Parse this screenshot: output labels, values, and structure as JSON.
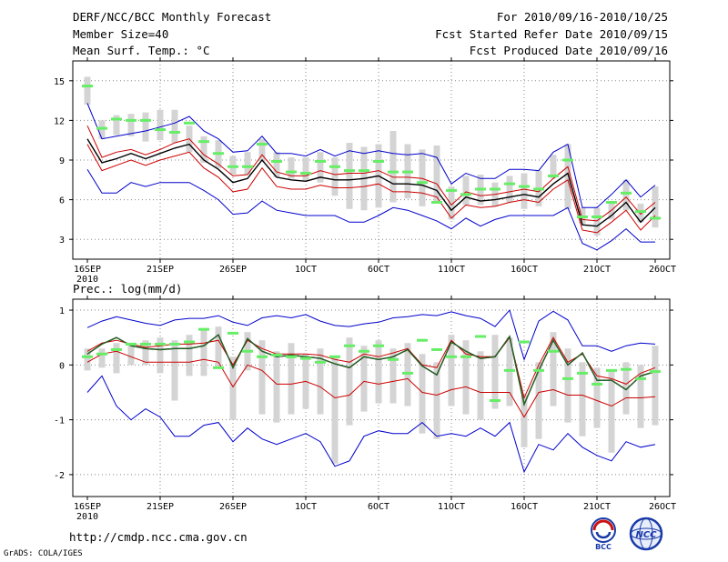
{
  "header": {
    "title": "DERF/NCC/BCC Monthly Forecast",
    "member_size": "Member Size=40",
    "variable": "Mean Surf. Temp.: °C",
    "period": "For 2010/09/16-2010/10/25",
    "started": "Fcst Started Refer Date 2010/09/15",
    "produced": "Fcst Produced Date 2010/09/16"
  },
  "footer": {
    "url": "http://cmdp.ncc.cma.gov.cn",
    "grads": "GrADS: COLA/IGES",
    "logo_bcc": "BCC",
    "logo_ncc": "NCC"
  },
  "colors": {
    "ensemble_range": "#0000cc",
    "spread": "#cc0000",
    "mean": "#000000",
    "member_bar": "#d4d4d4",
    "median_mark": "#66ee66",
    "grid": "#888888"
  },
  "chart_data": [
    {
      "type": "line",
      "title": "",
      "ylabel": "Mean Surf. Temp.: °C",
      "xlabel": "",
      "ylim": [
        1.5,
        16.5
      ],
      "yticks": [
        3,
        6,
        9,
        12,
        15
      ],
      "x_days": 40,
      "xticks": [
        {
          "day": 1,
          "label": "16SEP",
          "sublabel": "2010"
        },
        {
          "day": 6,
          "label": "21SEP"
        },
        {
          "day": 11,
          "label": "26SEP"
        },
        {
          "day": 16,
          "label": "1OCT"
        },
        {
          "day": 21,
          "label": "6OCT"
        },
        {
          "day": 26,
          "label": "11OCT"
        },
        {
          "day": 31,
          "label": "16OCT"
        },
        {
          "day": 36,
          "label": "21OCT"
        },
        {
          "day": 40,
          "label": "26OCT"
        }
      ],
      "series": [
        {
          "name": "max",
          "color": "#0000cc",
          "values": [
            13.3,
            10.6,
            10.8,
            11.0,
            11.2,
            11.5,
            11.8,
            12.3,
            11.2,
            10.6,
            9.6,
            9.7,
            10.8,
            9.5,
            9.5,
            9.3,
            9.8,
            9.3,
            9.7,
            9.5,
            9.7,
            9.5,
            9.4,
            9.5,
            9.2,
            7.2,
            8.0,
            7.6,
            7.6,
            8.3,
            8.3,
            8.2,
            9.6,
            10.2,
            5.4,
            5.4,
            6.4,
            7.5,
            6.2,
            7.1
          ]
        },
        {
          "name": "upper",
          "color": "#cc0000",
          "values": [
            11.6,
            9.2,
            9.6,
            9.8,
            9.4,
            9.8,
            10.3,
            10.6,
            9.4,
            8.7,
            7.8,
            7.9,
            9.4,
            8.1,
            7.8,
            7.8,
            8.2,
            7.9,
            8.0,
            8.0,
            8.2,
            7.7,
            7.7,
            7.6,
            7.2,
            5.6,
            6.6,
            6.3,
            6.4,
            6.6,
            6.8,
            6.6,
            7.6,
            8.5,
            4.5,
            4.4,
            5.2,
            6.2,
            4.9,
            5.8
          ]
        },
        {
          "name": "mean",
          "color": "#000000",
          "values": [
            10.6,
            8.8,
            9.1,
            9.5,
            9.1,
            9.5,
            9.9,
            10.2,
            9.0,
            8.3,
            7.3,
            7.6,
            9.0,
            7.7,
            7.5,
            7.4,
            7.7,
            7.5,
            7.5,
            7.6,
            7.8,
            7.2,
            7.2,
            7.1,
            6.7,
            5.2,
            6.2,
            5.9,
            6.0,
            6.2,
            6.4,
            6.2,
            7.2,
            8.0,
            4.1,
            4.0,
            4.8,
            5.8,
            4.3,
            5.4
          ]
        },
        {
          "name": "lower",
          "color": "#cc0000",
          "values": [
            10.2,
            8.2,
            8.6,
            9.0,
            8.6,
            9.0,
            9.3,
            9.6,
            8.4,
            7.7,
            6.6,
            6.8,
            8.4,
            7.0,
            6.8,
            6.8,
            7.1,
            6.9,
            6.9,
            7.0,
            7.2,
            6.6,
            6.6,
            6.5,
            6.2,
            4.6,
            5.6,
            5.4,
            5.5,
            5.8,
            6.0,
            5.8,
            6.8,
            7.5,
            3.7,
            3.5,
            4.3,
            5.2,
            3.7,
            4.8
          ]
        },
        {
          "name": "min",
          "color": "#0000cc",
          "values": [
            8.3,
            6.5,
            6.5,
            7.3,
            7.0,
            7.3,
            7.3,
            7.3,
            6.7,
            6.0,
            4.9,
            5.0,
            5.9,
            5.2,
            5.0,
            4.8,
            4.8,
            4.8,
            4.3,
            4.3,
            4.8,
            5.4,
            5.2,
            4.8,
            4.4,
            3.8,
            4.6,
            4.0,
            4.5,
            4.8,
            4.8,
            4.8,
            4.8,
            5.4,
            2.7,
            2.2,
            2.9,
            3.8,
            2.8,
            2.8
          ]
        }
      ],
      "member_bars": [
        [
          13.2,
          15.3
        ],
        [
          10.6,
          12.0
        ],
        [
          10.9,
          12.4
        ],
        [
          10.8,
          12.5
        ],
        [
          10.4,
          12.6
        ],
        [
          10.5,
          12.8
        ],
        [
          10.3,
          12.8
        ],
        [
          9.6,
          11.6
        ],
        [
          8.8,
          10.8
        ],
        [
          8.4,
          10.5
        ],
        [
          7.9,
          9.3
        ],
        [
          7.9,
          9.6
        ],
        [
          8.9,
          10.6
        ],
        [
          7.7,
          9.6
        ],
        [
          7.6,
          9.2
        ],
        [
          7.4,
          9.2
        ],
        [
          7.3,
          9.6
        ],
        [
          6.3,
          9.2
        ],
        [
          5.3,
          10.3
        ],
        [
          5.2,
          10.0
        ],
        [
          5.4,
          10.2
        ],
        [
          5.8,
          11.2
        ],
        [
          6.1,
          10.2
        ],
        [
          5.5,
          9.8
        ],
        [
          5.9,
          10.1
        ],
        [
          4.5,
          7.0
        ],
        [
          5.6,
          7.8
        ],
        [
          5.6,
          7.9
        ],
        [
          5.5,
          7.3
        ],
        [
          5.8,
          7.8
        ],
        [
          5.3,
          8.0
        ],
        [
          5.5,
          8.2
        ],
        [
          7.6,
          9.4
        ],
        [
          5.3,
          10.2
        ],
        [
          4.2,
          5.4
        ],
        [
          3.3,
          5.4
        ],
        [
          4.5,
          5.9
        ],
        [
          5.2,
          7.5
        ],
        [
          4.3,
          5.7
        ],
        [
          3.9,
          7.0
        ]
      ],
      "median_marks": [
        14.6,
        11.4,
        12.1,
        12.0,
        12.0,
        11.3,
        11.1,
        11.8,
        10.4,
        9.5,
        8.5,
        8.5,
        10.2,
        8.9,
        8.1,
        8.0,
        8.9,
        8.5,
        8.2,
        8.2,
        8.9,
        8.1,
        8.1,
        7.3,
        5.8,
        6.7,
        6.4,
        6.8,
        6.8,
        7.2,
        7.0,
        6.8,
        7.8,
        9.0,
        4.7,
        4.7,
        5.8,
        6.5,
        5.1,
        4.6
      ]
    },
    {
      "type": "line",
      "title": "Prec.: log(mm/d)",
      "ylabel": "Prec.: log(mm/d)",
      "xlabel": "",
      "ylim": [
        -2.4,
        1.2
      ],
      "yticks": [
        -2,
        -1,
        0,
        1
      ],
      "x_days": 40,
      "xticks": [
        {
          "day": 1,
          "label": "16SEP",
          "sublabel": "2010"
        },
        {
          "day": 6,
          "label": "21SEP"
        },
        {
          "day": 11,
          "label": "26SEP"
        },
        {
          "day": 16,
          "label": "1OCT"
        },
        {
          "day": 21,
          "label": "6OCT"
        },
        {
          "day": 26,
          "label": "11OCT"
        },
        {
          "day": 31,
          "label": "16OCT"
        },
        {
          "day": 36,
          "label": "21OCT"
        },
        {
          "day": 40,
          "label": "26OCT"
        }
      ],
      "series": [
        {
          "name": "max",
          "color": "#0000cc",
          "values": [
            0.68,
            0.8,
            0.88,
            0.82,
            0.76,
            0.72,
            0.82,
            0.85,
            0.85,
            0.9,
            0.78,
            0.72,
            0.86,
            0.9,
            0.86,
            0.92,
            0.8,
            0.72,
            0.7,
            0.75,
            0.78,
            0.86,
            0.88,
            0.92,
            0.9,
            0.97,
            0.9,
            0.85,
            0.7,
            1.0,
            0.1,
            0.8,
            0.98,
            0.82,
            0.35,
            0.35,
            0.25,
            0.35,
            0.4,
            0.38
          ]
        },
        {
          "name": "upper",
          "color": "#cc0000",
          "values": [
            0.25,
            0.4,
            0.45,
            0.38,
            0.32,
            0.35,
            0.38,
            0.38,
            0.4,
            0.45,
            0.0,
            0.45,
            0.3,
            0.2,
            0.2,
            0.2,
            0.18,
            0.1,
            0.05,
            0.2,
            0.15,
            0.22,
            0.3,
            0.0,
            -0.05,
            0.45,
            0.2,
            0.15,
            0.15,
            0.5,
            -0.6,
            0.0,
            0.5,
            0.05,
            0.2,
            -0.2,
            -0.25,
            -0.35,
            -0.15,
            -0.05
          ]
        },
        {
          "name": "mean",
          "color": "#000000",
          "values": [
            0.2,
            0.38,
            0.5,
            0.35,
            0.3,
            0.28,
            0.3,
            0.3,
            0.35,
            0.55,
            -0.05,
            0.48,
            0.25,
            0.15,
            0.18,
            0.15,
            0.12,
            0.02,
            -0.05,
            0.15,
            0.1,
            0.15,
            0.28,
            -0.02,
            -0.18,
            0.42,
            0.25,
            0.12,
            0.15,
            0.52,
            -0.72,
            -0.1,
            0.45,
            0.0,
            0.22,
            -0.28,
            -0.28,
            -0.45,
            -0.2,
            -0.12
          ]
        },
        {
          "name": "lower",
          "color": "#cc0000",
          "values": [
            0.05,
            0.2,
            0.25,
            0.15,
            0.05,
            0.05,
            0.05,
            0.05,
            0.1,
            0.05,
            -0.4,
            0.0,
            -0.1,
            -0.35,
            -0.35,
            -0.3,
            -0.4,
            -0.6,
            -0.55,
            -0.3,
            -0.35,
            -0.3,
            -0.25,
            -0.5,
            -0.55,
            -0.45,
            -0.4,
            -0.5,
            -0.5,
            -0.5,
            -0.95,
            -0.5,
            -0.45,
            -0.55,
            -0.55,
            -0.65,
            -0.75,
            -0.6,
            -0.6,
            -0.58
          ]
        },
        {
          "name": "min",
          "color": "#0000cc",
          "values": [
            -0.5,
            -0.2,
            -0.75,
            -1.0,
            -0.8,
            -0.95,
            -1.3,
            -1.3,
            -1.1,
            -1.05,
            -1.4,
            -1.15,
            -1.35,
            -1.45,
            -1.35,
            -1.25,
            -1.4,
            -1.85,
            -1.75,
            -1.3,
            -1.2,
            -1.25,
            -1.25,
            -1.05,
            -1.3,
            -1.25,
            -1.3,
            -1.15,
            -1.3,
            -1.05,
            -1.95,
            -1.45,
            -1.55,
            -1.25,
            -1.5,
            -1.65,
            -1.75,
            -1.4,
            -1.5,
            -1.45
          ]
        },
        {
          "name": "mean-green",
          "color": "#227722",
          "values": [
            0.2,
            0.38,
            0.5,
            0.35,
            0.3,
            0.28,
            0.3,
            0.3,
            0.35,
            0.55,
            -0.05,
            0.48,
            0.25,
            0.15,
            0.18,
            0.15,
            0.12,
            0.02,
            -0.05,
            0.15,
            0.1,
            0.15,
            0.28,
            -0.02,
            -0.18,
            0.42,
            0.25,
            0.12,
            0.15,
            0.52,
            -0.72,
            -0.1,
            0.45,
            0.0,
            0.22,
            -0.28,
            -0.28,
            -0.45,
            -0.2,
            -0.12
          ]
        }
      ],
      "member_bars": [
        [
          -0.1,
          0.3
        ],
        [
          -0.05,
          0.3
        ],
        [
          -0.15,
          0.4
        ],
        [
          0.0,
          0.4
        ],
        [
          0.0,
          0.45
        ],
        [
          -0.15,
          0.5
        ],
        [
          -0.65,
          0.45
        ],
        [
          -0.2,
          0.55
        ],
        [
          -0.2,
          0.65
        ],
        [
          -0.05,
          0.7
        ],
        [
          -1.0,
          0.15
        ],
        [
          -0.1,
          0.6
        ],
        [
          -0.9,
          0.45
        ],
        [
          -1.05,
          0.25
        ],
        [
          -0.9,
          0.4
        ],
        [
          -0.8,
          0.2
        ],
        [
          -0.9,
          0.3
        ],
        [
          -1.8,
          0.15
        ],
        [
          -1.1,
          0.5
        ],
        [
          -0.85,
          0.35
        ],
        [
          -0.7,
          0.45
        ],
        [
          -0.7,
          0.3
        ],
        [
          -0.75,
          0.4
        ],
        [
          -1.25,
          0.2
        ],
        [
          -1.35,
          0.05
        ],
        [
          -0.75,
          0.55
        ],
        [
          -0.9,
          0.45
        ],
        [
          -1.0,
          0.25
        ],
        [
          -0.8,
          0.55
        ],
        [
          -0.75,
          0.5
        ],
        [
          -1.5,
          -0.55
        ],
        [
          -1.35,
          0.05
        ],
        [
          -0.75,
          0.6
        ],
        [
          -1.05,
          0.3
        ],
        [
          -1.3,
          0.05
        ],
        [
          -1.15,
          -0.05
        ],
        [
          -1.6,
          -0.1
        ],
        [
          -0.9,
          0.05
        ],
        [
          -1.15,
          0.0
        ],
        [
          -1.1,
          0.35
        ]
      ],
      "median_marks": [
        0.15,
        0.2,
        0.28,
        0.38,
        0.38,
        0.38,
        0.38,
        0.42,
        0.65,
        -0.05,
        0.58,
        0.25,
        0.15,
        0.18,
        0.15,
        0.12,
        0.05,
        0.15,
        0.35,
        0.25,
        0.35,
        0.1,
        -0.15,
        0.45,
        0.28,
        0.15,
        0.15,
        0.52,
        -0.65,
        -0.1,
        0.42,
        -0.1,
        0.25,
        -0.25,
        -0.15,
        -0.35,
        -0.1,
        -0.08,
        -0.25,
        -0.12
      ]
    }
  ]
}
